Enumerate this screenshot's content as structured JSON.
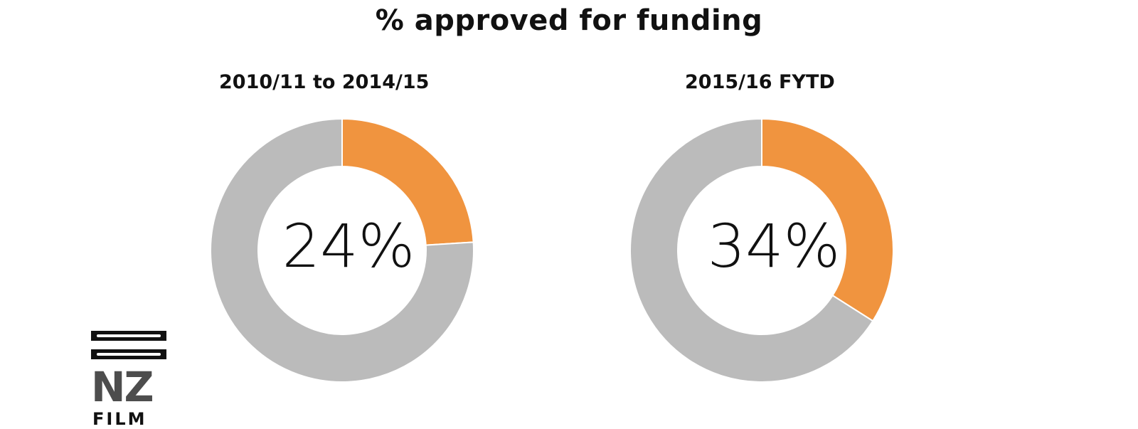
{
  "title": "% approved for funding",
  "colors": {
    "approved": "#F0943F",
    "remainder": "#BBBBBB",
    "divider": "#FFFFFF"
  },
  "logo": {
    "text_line1": "NZ",
    "text_line2": "FILM"
  },
  "chart_data": [
    {
      "type": "pie",
      "subtitle": "2010/11 to 2014/15",
      "center_label": "24%",
      "slices": [
        {
          "value": 24,
          "color": "#F0943F"
        },
        {
          "value": 76,
          "color": "#BBBBBB"
        }
      ]
    },
    {
      "type": "pie",
      "subtitle": "2015/16 FYTD",
      "center_label": "34%",
      "slices": [
        {
          "value": 34,
          "color": "#F0943F"
        },
        {
          "value": 66,
          "color": "#BBBBBB"
        }
      ]
    }
  ]
}
